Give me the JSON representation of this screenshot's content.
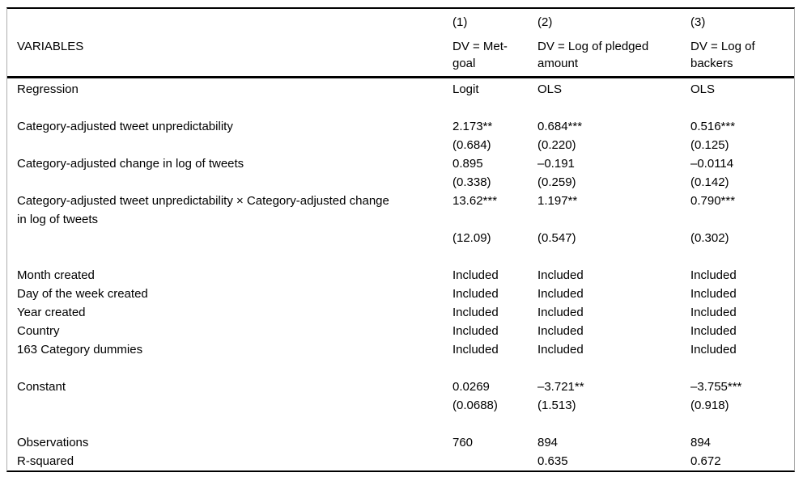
{
  "table": {
    "header": {
      "variables_label": "VARIABLES",
      "columns": [
        {
          "number": "(1)",
          "dv": "DV = Met-\ngoal"
        },
        {
          "number": "(2)",
          "dv": "DV = Log of pledged\namount"
        },
        {
          "number": "(3)",
          "dv": "DV = Log of\nbackers"
        }
      ]
    },
    "rows": [
      {
        "label": "Regression",
        "c1": "Logit",
        "c2": "OLS",
        "c3": "OLS"
      },
      {
        "label": "",
        "c1": "",
        "c2": "",
        "c3": ""
      },
      {
        "label": "Category-adjusted tweet unpredictability",
        "c1": "2.173**",
        "c2": "0.684***",
        "c3": "0.516***"
      },
      {
        "label": "",
        "c1": "(0.684)",
        "c2": "(0.220)",
        "c3": "(0.125)"
      },
      {
        "label": "Category-adjusted change in log of tweets",
        "c1": "0.895",
        "c2": "–0.191",
        "c3": "–0.0114"
      },
      {
        "label": "",
        "c1": "(0.338)",
        "c2": "(0.259)",
        "c3": "(0.142)"
      },
      {
        "label": "Category-adjusted tweet unpredictability × Category-adjusted change\nin log of tweets",
        "c1": "13.62***",
        "c2": "1.197**",
        "c3": "0.790***"
      },
      {
        "label": "",
        "c1": "(12.09)",
        "c2": "(0.547)",
        "c3": "(0.302)"
      },
      {
        "label": "",
        "c1": "",
        "c2": "",
        "c3": ""
      },
      {
        "label": "Month created",
        "c1": "Included",
        "c2": "Included",
        "c3": "Included"
      },
      {
        "label": "Day of the week created",
        "c1": "Included",
        "c2": "Included",
        "c3": "Included"
      },
      {
        "label": "Year created",
        "c1": "Included",
        "c2": "Included",
        "c3": "Included"
      },
      {
        "label": "Country",
        "c1": "Included",
        "c2": "Included",
        "c3": "Included"
      },
      {
        "label": "163 Category dummies",
        "c1": "Included",
        "c2": "Included",
        "c3": "Included"
      },
      {
        "label": "",
        "c1": "",
        "c2": "",
        "c3": ""
      },
      {
        "label": "Constant",
        "c1": "0.0269",
        "c2": "–3.721**",
        "c3": "–3.755***"
      },
      {
        "label": "",
        "c1": "(0.0688)",
        "c2": "(1.513)",
        "c3": "(0.918)"
      },
      {
        "label": "",
        "c1": "",
        "c2": "",
        "c3": ""
      },
      {
        "label": "Observations",
        "c1": "760",
        "c2": "894",
        "c3": "894"
      },
      {
        "label": "R-squared",
        "c1": "",
        "c2": "0.635",
        "c3": "0.672"
      }
    ]
  }
}
